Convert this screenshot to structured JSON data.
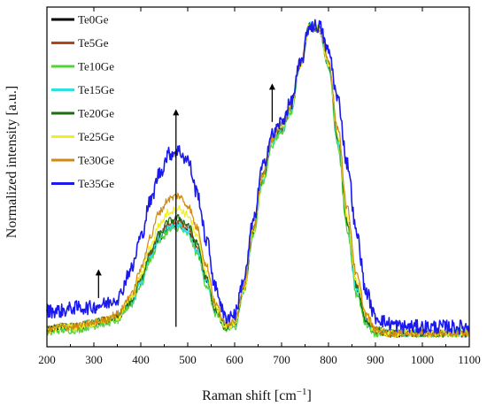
{
  "chart_data": {
    "type": "line",
    "title": "",
    "xlabel": "Raman shift [cm",
    "xlabel_superscript": "−1",
    "xlabel_suffix": "]",
    "ylabel": "Normalized intensity [a.u.]",
    "xlim": [
      200,
      1100
    ],
    "x_ticks": [
      200,
      300,
      400,
      500,
      600,
      700,
      800,
      900,
      1000,
      1100
    ],
    "y_ticks_shown": false,
    "grid": false,
    "legend_position": "top-left",
    "x": [
      200,
      230,
      260,
      290,
      320,
      350,
      380,
      400,
      420,
      440,
      460,
      480,
      500,
      520,
      540,
      560,
      580,
      600,
      620,
      640,
      660,
      680,
      700,
      720,
      740,
      760,
      780,
      800,
      820,
      840,
      860,
      880,
      900,
      930,
      960,
      1000,
      1050,
      1100
    ],
    "series": [
      {
        "name": "Te0Ge",
        "color": "#000000",
        "values": [
          0.03,
          0.04,
          0.04,
          0.05,
          0.06,
          0.07,
          0.12,
          0.18,
          0.26,
          0.32,
          0.35,
          0.36,
          0.34,
          0.28,
          0.18,
          0.09,
          0.04,
          0.05,
          0.16,
          0.34,
          0.5,
          0.62,
          0.66,
          0.72,
          0.86,
          0.98,
          0.97,
          0.86,
          0.62,
          0.36,
          0.16,
          0.06,
          0.03,
          0.02,
          0.02,
          0.02,
          0.02,
          0.02
        ]
      },
      {
        "name": "Te5Ge",
        "color": "#b5441c",
        "values": [
          0.03,
          0.04,
          0.04,
          0.05,
          0.06,
          0.07,
          0.12,
          0.19,
          0.27,
          0.33,
          0.36,
          0.37,
          0.35,
          0.29,
          0.19,
          0.09,
          0.04,
          0.05,
          0.16,
          0.34,
          0.5,
          0.62,
          0.66,
          0.72,
          0.86,
          0.98,
          0.97,
          0.86,
          0.62,
          0.37,
          0.17,
          0.06,
          0.03,
          0.02,
          0.02,
          0.02,
          0.02,
          0.02
        ]
      },
      {
        "name": "Te10Ge",
        "color": "#4fd435",
        "values": [
          0.02,
          0.03,
          0.03,
          0.04,
          0.05,
          0.06,
          0.11,
          0.17,
          0.25,
          0.31,
          0.34,
          0.35,
          0.33,
          0.27,
          0.17,
          0.08,
          0.03,
          0.04,
          0.15,
          0.33,
          0.49,
          0.61,
          0.65,
          0.71,
          0.86,
          0.98,
          0.97,
          0.85,
          0.6,
          0.34,
          0.14,
          0.05,
          0.02,
          0.02,
          0.02,
          0.02,
          0.02,
          0.02
        ]
      },
      {
        "name": "Te15Ge",
        "color": "#2fe0e0",
        "values": [
          0.03,
          0.04,
          0.04,
          0.05,
          0.06,
          0.07,
          0.12,
          0.18,
          0.26,
          0.32,
          0.35,
          0.36,
          0.34,
          0.28,
          0.18,
          0.09,
          0.04,
          0.05,
          0.16,
          0.34,
          0.5,
          0.62,
          0.66,
          0.72,
          0.86,
          0.98,
          0.97,
          0.86,
          0.62,
          0.36,
          0.16,
          0.06,
          0.03,
          0.02,
          0.02,
          0.02,
          0.02,
          0.02
        ]
      },
      {
        "name": "Te20Ge",
        "color": "#1e6b12",
        "values": [
          0.03,
          0.04,
          0.04,
          0.05,
          0.06,
          0.07,
          0.12,
          0.19,
          0.27,
          0.33,
          0.37,
          0.38,
          0.36,
          0.3,
          0.19,
          0.09,
          0.04,
          0.05,
          0.16,
          0.34,
          0.51,
          0.63,
          0.67,
          0.73,
          0.86,
          0.98,
          0.97,
          0.86,
          0.63,
          0.37,
          0.17,
          0.06,
          0.03,
          0.02,
          0.02,
          0.02,
          0.02,
          0.02
        ]
      },
      {
        "name": "Te25Ge",
        "color": "#f0f020",
        "values": [
          0.03,
          0.04,
          0.04,
          0.05,
          0.06,
          0.07,
          0.13,
          0.2,
          0.29,
          0.36,
          0.4,
          0.41,
          0.39,
          0.32,
          0.21,
          0.1,
          0.04,
          0.05,
          0.16,
          0.34,
          0.51,
          0.63,
          0.67,
          0.73,
          0.86,
          0.98,
          0.97,
          0.86,
          0.64,
          0.38,
          0.18,
          0.07,
          0.03,
          0.02,
          0.02,
          0.02,
          0.02,
          0.02
        ]
      },
      {
        "name": "Te30Ge",
        "color": "#d08a14",
        "values": [
          0.03,
          0.04,
          0.04,
          0.05,
          0.06,
          0.08,
          0.14,
          0.22,
          0.32,
          0.4,
          0.44,
          0.45,
          0.42,
          0.35,
          0.23,
          0.11,
          0.05,
          0.06,
          0.17,
          0.35,
          0.52,
          0.63,
          0.67,
          0.73,
          0.86,
          0.98,
          0.97,
          0.87,
          0.66,
          0.41,
          0.2,
          0.08,
          0.03,
          0.02,
          0.02,
          0.02,
          0.02,
          0.02
        ]
      },
      {
        "name": "Te35Ge",
        "color": "#1a1aee",
        "values": [
          0.09,
          0.09,
          0.1,
          0.1,
          0.11,
          0.13,
          0.22,
          0.32,
          0.43,
          0.52,
          0.58,
          0.59,
          0.56,
          0.46,
          0.31,
          0.16,
          0.07,
          0.08,
          0.19,
          0.37,
          0.54,
          0.64,
          0.68,
          0.74,
          0.86,
          0.98,
          0.98,
          0.9,
          0.75,
          0.55,
          0.33,
          0.15,
          0.07,
          0.05,
          0.04,
          0.04,
          0.04,
          0.04
        ]
      }
    ],
    "arrows": [
      {
        "x": 310,
        "from": 0.13,
        "to": 0.22
      },
      {
        "x": 475,
        "from": 0.04,
        "to": 0.72
      },
      {
        "x": 680,
        "from": 0.68,
        "to": 0.8
      }
    ]
  }
}
